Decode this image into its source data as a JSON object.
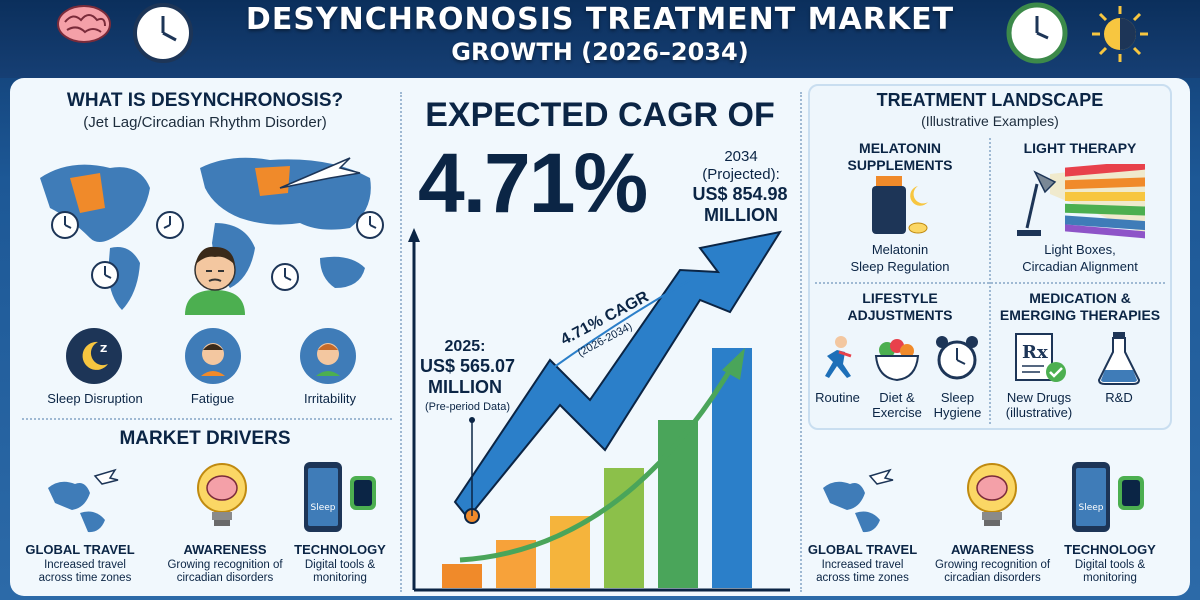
{
  "header": {
    "title_line1": "DESYNCHRONOSIS TREATMENT MARKET",
    "title_line2": "GROWTH (2026–2034)"
  },
  "left": {
    "what_title": "WHAT IS DESYNCHRONOSIS?",
    "what_sub": "(Jet Lag/Circadian Rhythm Disorder)",
    "symptoms": [
      {
        "label": "Sleep Disruption",
        "icon": "moon-sleep-icon"
      },
      {
        "label": "Fatigue",
        "icon": "tired-person-icon"
      },
      {
        "label": "Irritability",
        "icon": "irritated-person-icon"
      }
    ],
    "drivers_title": "MARKET DRIVERS",
    "drivers": [
      {
        "title": "GLOBAL TRAVEL",
        "desc": "Increased travel across time zones",
        "icon": "globe-plane-icon"
      },
      {
        "title": "AWARENESS",
        "desc": "Growing recognition of circadian disorders",
        "icon": "brain-bulb-icon"
      },
      {
        "title": "TECHNOLOGY",
        "desc": "Digital tools & monitoring",
        "icon": "phone-watch-icon",
        "screen_text": "Sleep"
      }
    ]
  },
  "center": {
    "cagr_heading": "EXPECTED CAGR OF",
    "cagr_value": "4.71%",
    "projected_year": "2034",
    "projected_label": "(Projected):",
    "projected_value": "US$ 854.98",
    "projected_unit": "MILLION",
    "base_year": "2025:",
    "base_value": "US$ 565.07",
    "base_unit": "MILLION",
    "base_note": "(Pre-period Data)",
    "arrow_label": "4.71% CAGR",
    "arrow_sub": "(2026-2034)"
  },
  "chart_data": {
    "type": "bar",
    "values": [
      1,
      2,
      3,
      5,
      7,
      10
    ],
    "colors": [
      "#f08a2a",
      "#f7a23a",
      "#f5b43c",
      "#8cc04a",
      "#4aa55a",
      "#2b7fc9"
    ]
  },
  "right": {
    "title": "TREATMENT LANDSCAPE",
    "sub": "(Illustrative Examples)",
    "melatonin_title1": "MELATONIN",
    "melatonin_title2": "SUPPLEMENTS",
    "melatonin_desc1": "Melatonin",
    "melatonin_desc2": "Sleep Regulation",
    "light_title": "LIGHT THERAPY",
    "light_desc1": "Light Boxes,",
    "light_desc2": "Circadian Alignment",
    "lifestyle_title1": "LIFESTYLE",
    "lifestyle_title2": "ADJUSTMENTS",
    "lifestyle_items": [
      {
        "label": "Routine",
        "icon": "runner-icon"
      },
      {
        "label": "Diet & Exercise",
        "icon": "salad-bowl-icon"
      },
      {
        "label": "Sleep Hygiene",
        "icon": "alarm-clock-icon"
      }
    ],
    "medication_title1": "MEDICATION &",
    "medication_title2": "EMERGING THERAPIES",
    "medication_items": [
      {
        "label": "New Drugs (illustrative)",
        "icon": "rx-document-icon"
      },
      {
        "label": "R&D",
        "icon": "flask-icon"
      }
    ],
    "drivers": [
      {
        "title": "GLOBAL TRAVEL",
        "desc": "Increased travel across time zones"
      },
      {
        "title": "AWARENESS",
        "desc": "Growing recognition of circadian disorders"
      },
      {
        "title": "TECHNOLOGY",
        "desc": "Digital tools & monitoring"
      }
    ]
  },
  "colors": {
    "navy": "#0b2545",
    "blue_arrow": "#2b7fc9",
    "green_arrow": "#4aa55a",
    "orange": "#f08a2a"
  }
}
